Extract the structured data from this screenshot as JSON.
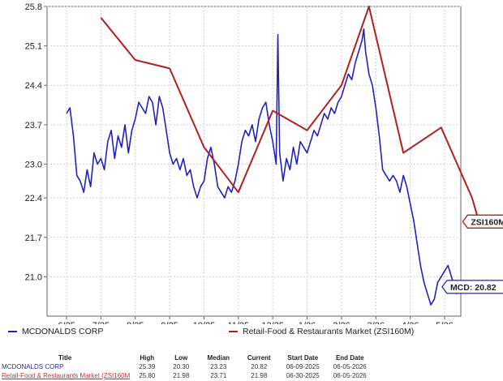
{
  "chart_data": {
    "type": "line",
    "ylim": [
      20.3,
      25.8
    ],
    "y_ticks": [
      "21.0",
      "21.7",
      "22.4",
      "23.0",
      "23.7",
      "24.4",
      "25.1",
      "25.8"
    ],
    "x_ticks": [
      "6/25",
      "7/25",
      "8/25",
      "9/25",
      "10/25",
      "11/25",
      "12/25",
      "1/26",
      "2/26",
      "3/26",
      "4/26",
      "5/26"
    ],
    "grid": true,
    "series": [
      {
        "name": "MCDONALDS CORP",
        "color": "#2222bb",
        "tag": "MCD: 20.82",
        "points": [
          [
            0.0,
            23.9
          ],
          [
            0.1,
            24.0
          ],
          [
            0.2,
            23.5
          ],
          [
            0.3,
            22.8
          ],
          [
            0.4,
            22.7
          ],
          [
            0.5,
            22.5
          ],
          [
            0.6,
            22.9
          ],
          [
            0.7,
            22.6
          ],
          [
            0.8,
            23.2
          ],
          [
            0.9,
            23.0
          ],
          [
            1.0,
            23.1
          ],
          [
            1.1,
            22.9
          ],
          [
            1.2,
            23.4
          ],
          [
            1.3,
            23.6
          ],
          [
            1.4,
            23.1
          ],
          [
            1.5,
            23.5
          ],
          [
            1.6,
            23.3
          ],
          [
            1.7,
            23.7
          ],
          [
            1.8,
            23.2
          ],
          [
            1.9,
            23.6
          ],
          [
            2.0,
            23.8
          ],
          [
            2.1,
            24.1
          ],
          [
            2.2,
            24.0
          ],
          [
            2.3,
            23.9
          ],
          [
            2.4,
            24.2
          ],
          [
            2.5,
            24.1
          ],
          [
            2.6,
            23.7
          ],
          [
            2.7,
            24.2
          ],
          [
            2.8,
            24.0
          ],
          [
            2.9,
            23.6
          ],
          [
            3.0,
            23.2
          ],
          [
            3.1,
            23.0
          ],
          [
            3.2,
            23.1
          ],
          [
            3.3,
            22.9
          ],
          [
            3.4,
            23.1
          ],
          [
            3.5,
            22.8
          ],
          [
            3.6,
            22.9
          ],
          [
            3.7,
            22.6
          ],
          [
            3.8,
            22.4
          ],
          [
            3.9,
            22.6
          ],
          [
            4.0,
            22.7
          ],
          [
            4.1,
            23.1
          ],
          [
            4.2,
            23.3
          ],
          [
            4.3,
            23.0
          ],
          [
            4.4,
            22.6
          ],
          [
            4.5,
            22.5
          ],
          [
            4.6,
            22.4
          ],
          [
            4.7,
            22.6
          ],
          [
            4.8,
            22.5
          ],
          [
            4.9,
            22.7
          ],
          [
            5.0,
            23.0
          ],
          [
            5.1,
            23.4
          ],
          [
            5.2,
            23.6
          ],
          [
            5.3,
            23.5
          ],
          [
            5.4,
            23.7
          ],
          [
            5.5,
            23.4
          ],
          [
            5.6,
            23.8
          ],
          [
            5.7,
            24.0
          ],
          [
            5.8,
            24.1
          ],
          [
            5.9,
            23.7
          ],
          [
            6.0,
            23.4
          ],
          [
            6.1,
            23.0
          ],
          [
            6.15,
            25.3
          ],
          [
            6.2,
            23.2
          ],
          [
            6.3,
            22.7
          ],
          [
            6.4,
            23.1
          ],
          [
            6.5,
            22.9
          ],
          [
            6.6,
            23.3
          ],
          [
            6.7,
            23.0
          ],
          [
            6.8,
            23.4
          ],
          [
            6.9,
            23.3
          ],
          [
            7.0,
            23.2
          ],
          [
            7.1,
            23.4
          ],
          [
            7.2,
            23.6
          ],
          [
            7.3,
            23.5
          ],
          [
            7.4,
            23.7
          ],
          [
            7.5,
            23.9
          ],
          [
            7.6,
            23.8
          ],
          [
            7.7,
            24.0
          ],
          [
            7.8,
            23.9
          ],
          [
            7.9,
            24.1
          ],
          [
            8.0,
            24.2
          ],
          [
            8.1,
            24.4
          ],
          [
            8.2,
            24.6
          ],
          [
            8.3,
            24.5
          ],
          [
            8.4,
            24.8
          ],
          [
            8.5,
            25.0
          ],
          [
            8.6,
            25.2
          ],
          [
            8.65,
            25.4
          ],
          [
            8.7,
            25.0
          ],
          [
            8.8,
            24.6
          ],
          [
            8.9,
            24.4
          ],
          [
            9.0,
            24.0
          ],
          [
            9.1,
            23.5
          ],
          [
            9.2,
            22.9
          ],
          [
            9.3,
            22.8
          ],
          [
            9.4,
            22.7
          ],
          [
            9.5,
            22.8
          ],
          [
            9.6,
            22.7
          ],
          [
            9.7,
            22.5
          ],
          [
            9.8,
            22.8
          ],
          [
            9.9,
            22.6
          ],
          [
            10.0,
            22.3
          ],
          [
            10.1,
            22.0
          ],
          [
            10.2,
            21.6
          ],
          [
            10.3,
            21.2
          ],
          [
            10.4,
            20.9
          ],
          [
            10.5,
            20.7
          ],
          [
            10.6,
            20.5
          ],
          [
            10.7,
            20.6
          ],
          [
            10.8,
            20.9
          ],
          [
            10.9,
            21.0
          ],
          [
            11.0,
            21.1
          ],
          [
            11.1,
            21.2
          ],
          [
            11.2,
            21.0
          ],
          [
            11.3,
            20.8
          ],
          [
            11.35,
            20.7
          ],
          [
            11.4,
            20.82
          ]
        ]
      },
      {
        "name": "Retail-Food & Restaurants Market (ZSI160M)",
        "color": "#b02020",
        "tag": "ZSI160M: 21.98",
        "points": [
          [
            1.0,
            25.6
          ],
          [
            2.0,
            24.85
          ],
          [
            3.0,
            24.7
          ],
          [
            4.0,
            23.3
          ],
          [
            5.0,
            22.5
          ],
          [
            6.0,
            23.95
          ],
          [
            7.0,
            23.6
          ],
          [
            8.0,
            24.4
          ],
          [
            8.8,
            25.8
          ],
          [
            9.8,
            23.2
          ],
          [
            10.9,
            23.65
          ],
          [
            11.8,
            22.4
          ],
          [
            12.0,
            21.98
          ]
        ]
      }
    ]
  },
  "legend": {
    "items": [
      {
        "label": "MCDONALDS CORP",
        "color": "#2222bb"
      },
      {
        "label": "Retail-Food & Restaurants Market (ZSI160M)",
        "color": "#b02020"
      }
    ]
  },
  "table": {
    "headers": [
      "Title",
      "High",
      "Low",
      "Median",
      "Current",
      "Start Date",
      "End Date"
    ],
    "rows": [
      [
        "MCDONALDS CORP",
        "25.39",
        "20.30",
        "23.23",
        "20.82",
        "06-09-2025",
        "06-05-2026"
      ],
      [
        "Retail-Food & Restaurants Market (ZSI160M",
        "25.80",
        "21.98",
        "23.71",
        "21.98",
        "06-30-2025",
        "06-05-2026"
      ]
    ]
  }
}
